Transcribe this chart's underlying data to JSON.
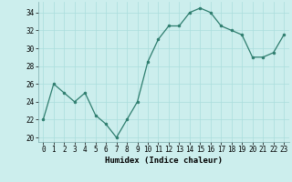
{
  "x": [
    0,
    1,
    2,
    3,
    4,
    5,
    6,
    7,
    8,
    9,
    10,
    11,
    12,
    13,
    14,
    15,
    16,
    17,
    18,
    19,
    20,
    21,
    22,
    23
  ],
  "y": [
    22,
    26,
    25,
    24,
    25,
    22.5,
    21.5,
    20,
    22,
    24,
    28.5,
    31,
    32.5,
    32.5,
    34,
    34.5,
    34,
    32.5,
    32,
    31.5,
    29,
    29,
    29.5,
    31.5
  ],
  "line_color": "#2e7d6e",
  "marker_color": "#2e7d6e",
  "bg_color": "#cceeed",
  "grid_color": "#aadddd",
  "xlabel": "Humidex (Indice chaleur)",
  "ylim": [
    19.5,
    35.2
  ],
  "xlim": [
    -0.5,
    23.5
  ],
  "yticks": [
    20,
    22,
    24,
    26,
    28,
    30,
    32,
    34
  ],
  "xticks": [
    0,
    1,
    2,
    3,
    4,
    5,
    6,
    7,
    8,
    9,
    10,
    11,
    12,
    13,
    14,
    15,
    16,
    17,
    18,
    19,
    20,
    21,
    22,
    23
  ],
  "xtick_labels": [
    "0",
    "1",
    "2",
    "3",
    "4",
    "5",
    "6",
    "7",
    "8",
    "9",
    "10",
    "11",
    "12",
    "13",
    "14",
    "15",
    "16",
    "17",
    "18",
    "19",
    "20",
    "21",
    "22",
    "23"
  ],
  "label_fontsize": 6.5,
  "tick_fontsize": 5.5
}
